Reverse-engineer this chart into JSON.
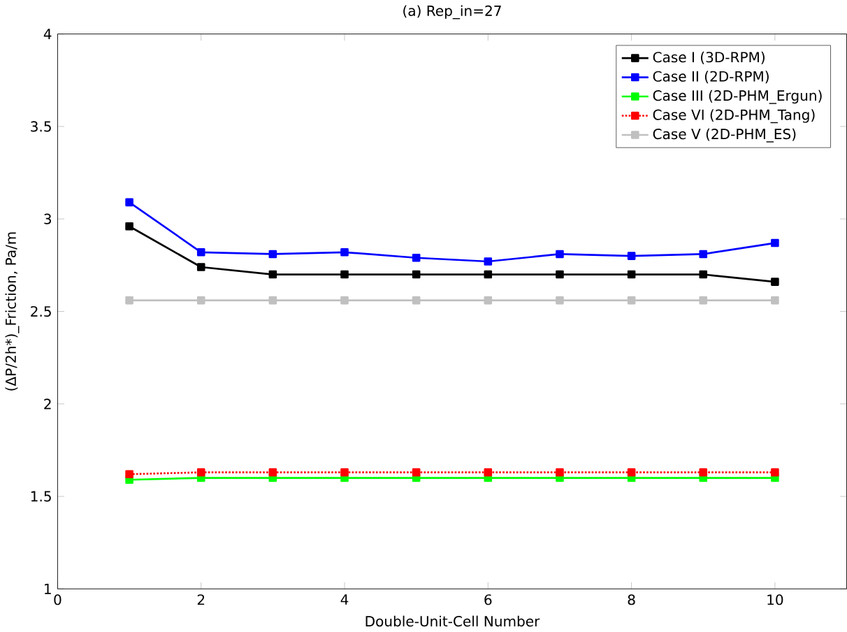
{
  "chart_data": {
    "type": "line",
    "title": "(a) Rep_in=27",
    "xlabel": "Double-Unit-Cell Number",
    "ylabel": "(ΔP/2h*)_Friction, Pa/m",
    "x": [
      1,
      2,
      3,
      4,
      5,
      6,
      7,
      8,
      9,
      10
    ],
    "series": [
      {
        "name": "Case I (3D-RPM)",
        "color": "#000000",
        "values": [
          2.96,
          2.74,
          2.7,
          2.7,
          2.7,
          2.7,
          2.7,
          2.7,
          2.7,
          2.66
        ]
      },
      {
        "name": "Case II (2D-RPM)",
        "color": "#0000ff",
        "values": [
          3.09,
          2.82,
          2.81,
          2.82,
          2.79,
          2.77,
          2.81,
          2.8,
          2.81,
          2.87
        ]
      },
      {
        "name": "Case III (2D-PHM_Ergun)",
        "color": "#00ff00",
        "values": [
          1.59,
          1.6,
          1.6,
          1.6,
          1.6,
          1.6,
          1.6,
          1.6,
          1.6,
          1.6
        ]
      },
      {
        "name": "Case VI (2D-PHM_Tang)",
        "color": "#ff0000",
        "line_style": "dotted",
        "values": [
          1.62,
          1.63,
          1.63,
          1.63,
          1.63,
          1.63,
          1.63,
          1.63,
          1.63,
          1.63
        ]
      },
      {
        "name": "Case V (2D-PHM_ES)",
        "color": "#c0c0c0",
        "values": [
          2.56,
          2.56,
          2.56,
          2.56,
          2.56,
          2.56,
          2.56,
          2.56,
          2.56,
          2.56
        ]
      }
    ],
    "xlim": [
      0,
      11
    ],
    "ylim": [
      1,
      4
    ],
    "xticks": [
      0,
      2,
      4,
      6,
      8,
      10
    ],
    "yticks": [
      1,
      1.5,
      2,
      2.5,
      3,
      3.5,
      4
    ],
    "marker": "square",
    "line_style": "solid",
    "legend": "top right",
    "grid": false
  }
}
